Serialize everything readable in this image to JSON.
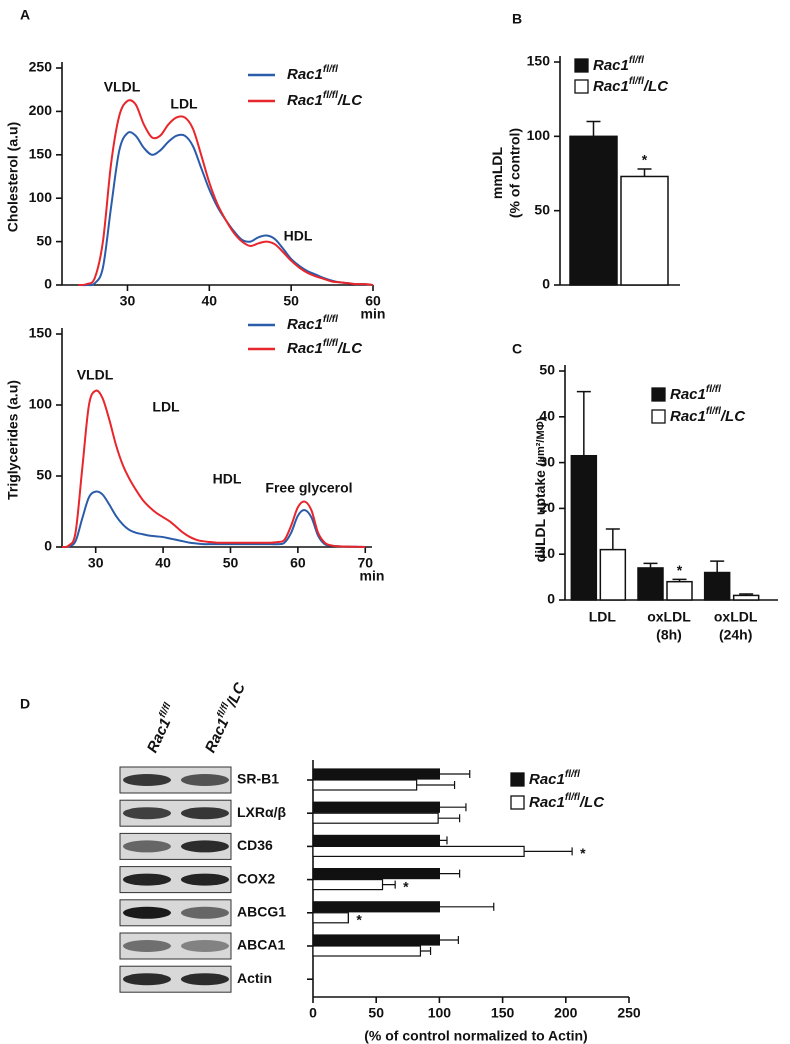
{
  "chart_data": [
    {
      "type": "line",
      "panel": "A",
      "ylabel": "Cholesterol (a.u)",
      "xunit": "min",
      "x": [
        24,
        25,
        26,
        27,
        28,
        29,
        30,
        31,
        32,
        33,
        34,
        35,
        36,
        37,
        38,
        39,
        40,
        41,
        42,
        43,
        44,
        45,
        46,
        47,
        48,
        49,
        50,
        51,
        52,
        53,
        54,
        55,
        56,
        57,
        58,
        59,
        60
      ],
      "series": [
        {
          "name": "Rac1",
          "superscript": "fl/fl",
          "color": "#2a5caa",
          "values": [
            0,
            0,
            2,
            20,
            90,
            155,
            175,
            172,
            158,
            150,
            155,
            165,
            172,
            172,
            160,
            135,
            110,
            90,
            75,
            62,
            52,
            50,
            55,
            57,
            53,
            42,
            30,
            22,
            16,
            12,
            8,
            5,
            3,
            2,
            1,
            1,
            0
          ]
        },
        {
          "name": "Rac1",
          "superscript": "fl/fl",
          "suffix": "/LC",
          "color": "#e8262b",
          "values": [
            0,
            1,
            8,
            50,
            140,
            195,
            212,
            208,
            185,
            170,
            172,
            185,
            193,
            193,
            180,
            150,
            118,
            93,
            75,
            60,
            50,
            45,
            48,
            50,
            47,
            38,
            28,
            20,
            14,
            10,
            7,
            4,
            3,
            2,
            1,
            1,
            0
          ]
        }
      ],
      "annotations": [
        "VLDL",
        "LDL",
        "HDL"
      ],
      "xlim": [
        22,
        60
      ],
      "xticks": [
        30,
        40,
        50,
        60
      ],
      "ylim": [
        0,
        250
      ],
      "yticks": [
        0,
        50,
        100,
        150,
        200,
        250
      ]
    },
    {
      "type": "line",
      "ylabel": "Triglycerides (a.u)",
      "xunit": "min",
      "x": [
        25,
        26,
        27,
        28,
        29,
        30,
        31,
        32,
        33,
        34,
        35,
        36,
        37,
        38,
        39,
        40,
        41,
        42,
        43,
        44,
        45,
        46,
        47,
        48,
        49,
        50,
        51,
        52,
        53,
        54,
        55,
        56,
        57,
        58,
        59,
        60,
        61,
        62,
        63,
        64,
        65,
        66,
        67,
        68,
        69,
        70
      ],
      "series": [
        {
          "name": "Rac1",
          "superscript": "fl/fl",
          "color": "#2a5caa",
          "values": [
            0,
            0.5,
            4,
            20,
            35,
            39,
            37,
            30,
            22,
            16,
            12,
            10,
            9,
            8,
            7.5,
            7,
            6,
            5,
            4,
            3,
            2.5,
            2,
            2,
            2,
            2,
            2,
            2,
            2,
            2,
            2,
            2,
            2,
            2,
            3,
            10,
            22,
            26,
            21,
            8,
            2,
            1,
            0.5,
            0.3,
            0.2,
            0.1,
            0
          ]
        },
        {
          "name": "Rac1",
          "superscript": "fl/fl",
          "suffix": "/LC",
          "color": "#e8262b",
          "values": [
            0,
            1,
            10,
            55,
            100,
            110,
            105,
            90,
            72,
            58,
            48,
            40,
            33,
            28,
            24,
            21,
            18,
            14,
            10,
            7,
            5,
            4,
            3.5,
            3,
            3,
            3,
            3,
            3,
            3,
            3,
            3,
            3,
            3.5,
            5,
            15,
            28,
            32,
            26,
            10,
            3,
            1,
            0.5,
            0.3,
            0.2,
            0.1,
            0
          ]
        }
      ],
      "annotations": [
        "VLDL",
        "LDL",
        "HDL",
        "Free glycerol"
      ],
      "xlim": [
        25,
        71
      ],
      "xticks": [
        30,
        40,
        50,
        60,
        70
      ],
      "ylim": [
        0,
        150
      ],
      "yticks": [
        0,
        50,
        100,
        150
      ]
    },
    {
      "type": "bar",
      "panel": "B",
      "ylabel": [
        "mmLDL",
        "(% of control)"
      ],
      "series": [
        {
          "name": "Rac1",
          "superscript": "fl/fl",
          "color": "#111111",
          "values": [
            100
          ],
          "errors": [
            10
          ]
        },
        {
          "name": "Rac1",
          "superscript": "fl/fl",
          "suffix": "/LC",
          "color": "#ffffff",
          "values": [
            73
          ],
          "errors": [
            5
          ],
          "significance": [
            "*"
          ]
        }
      ],
      "ylim": [
        0,
        150
      ],
      "yticks": [
        0,
        50,
        100,
        150
      ]
    },
    {
      "type": "bar",
      "panel": "C",
      "ylabel": [
        "diILDL uptake",
        "(µm²/MΦ)"
      ],
      "categories": [
        [
          "LDL"
        ],
        [
          "oxLDL",
          "(8h)"
        ],
        [
          "oxLDL",
          "(24h)"
        ]
      ],
      "series": [
        {
          "name": "Rac1",
          "superscript": "fl/fl",
          "color": "#111111",
          "values": [
            31.5,
            7,
            6
          ],
          "errors": [
            14,
            1,
            2.5
          ]
        },
        {
          "name": "Rac1",
          "superscript": "fl/fl",
          "suffix": "/LC",
          "color": "#ffffff",
          "values": [
            11,
            4,
            1
          ],
          "errors": [
            4.5,
            0.5,
            0.3
          ],
          "significance": [
            null,
            "*",
            null
          ]
        }
      ],
      "ylim": [
        0,
        50
      ],
      "yticks": [
        0,
        10,
        20,
        30,
        40,
        50
      ]
    },
    {
      "type": "barh",
      "panel": "D",
      "xlabel": "(% of control normalized to Actin)",
      "blot_labels": [
        {
          "name": "Rac1",
          "superscript": "fl/fl"
        },
        {
          "name": "Rac1",
          "superscript": "fl/fl",
          "suffix": "/LC"
        }
      ],
      "categories": [
        "SR-B1",
        "LXRα/β",
        "CD36",
        "COX2",
        "ABCG1",
        "ABCA1",
        "Actin"
      ],
      "series": [
        {
          "name": "Rac1",
          "superscript": "fl/fl",
          "color": "#111111",
          "values": [
            100,
            100,
            100,
            100,
            100,
            100,
            null
          ],
          "errors": [
            24,
            21,
            6,
            16,
            43,
            15,
            null
          ]
        },
        {
          "name": "Rac1",
          "superscript": "fl/fl",
          "suffix": "/LC",
          "color": "#ffffff",
          "values": [
            82,
            99,
            167,
            55,
            28,
            85,
            null
          ],
          "errors": [
            30,
            17,
            38,
            10,
            0,
            8,
            null
          ],
          "significance": [
            null,
            null,
            "*",
            "*",
            "*",
            null,
            null
          ]
        }
      ],
      "xlim": [
        0,
        250
      ],
      "xticks": [
        0,
        50,
        100,
        150,
        200,
        250
      ]
    }
  ]
}
